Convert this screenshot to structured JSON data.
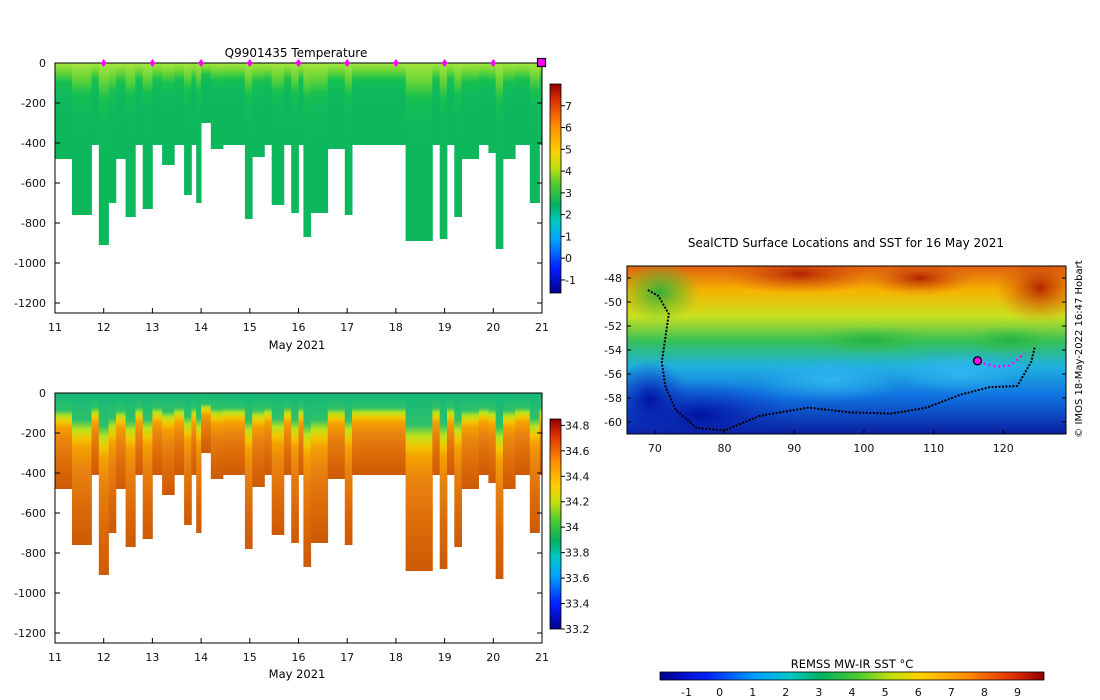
{
  "chart_data": [
    {
      "type": "heatmap",
      "title": "Q9901435  Temperature",
      "xlabel": "May 2021",
      "ylabel": "",
      "x_ticks": [
        11,
        12,
        13,
        14,
        15,
        16,
        17,
        18,
        19,
        20,
        21
      ],
      "x_range": [
        11,
        21
      ],
      "y_ticks": [
        0,
        -200,
        -400,
        -600,
        -800,
        -1000,
        -1200
      ],
      "y_range": [
        -1250,
        0
      ],
      "colorbar": {
        "min": -1.6,
        "max": 8,
        "ticks": [
          -1,
          0,
          1,
          2,
          3,
          4,
          5,
          6,
          7
        ],
        "palette": "jet-like"
      },
      "profile_markers_days": [
        12,
        13,
        14,
        15,
        16,
        17,
        18,
        19,
        20
      ],
      "current_position_day": 21,
      "marker_color": "#ff00ff",
      "profiles": [
        {
          "day": 11.05,
          "depth": 480
        },
        {
          "day": 11.35,
          "depth": 760
        },
        {
          "day": 11.75,
          "depth": 410
        },
        {
          "day": 11.9,
          "depth": 910
        },
        {
          "day": 12.1,
          "depth": 700
        },
        {
          "day": 12.25,
          "depth": 480
        },
        {
          "day": 12.45,
          "depth": 770
        },
        {
          "day": 12.65,
          "depth": 410
        },
        {
          "day": 12.8,
          "depth": 730
        },
        {
          "day": 13.0,
          "depth": 410
        },
        {
          "day": 13.2,
          "depth": 510
        },
        {
          "day": 13.45,
          "depth": 410
        },
        {
          "day": 13.65,
          "depth": 660
        },
        {
          "day": 13.8,
          "depth": 410
        },
        {
          "day": 13.9,
          "depth": 700
        },
        {
          "day": 14.0,
          "depth": 300
        },
        {
          "day": 14.2,
          "depth": 430
        },
        {
          "day": 14.45,
          "depth": 410
        },
        {
          "day": 14.7,
          "depth": 410
        },
        {
          "day": 14.9,
          "depth": 780
        },
        {
          "day": 15.05,
          "depth": 470
        },
        {
          "day": 15.3,
          "depth": 410
        },
        {
          "day": 15.45,
          "depth": 710
        },
        {
          "day": 15.7,
          "depth": 410
        },
        {
          "day": 15.85,
          "depth": 750
        },
        {
          "day": 16.0,
          "depth": 410
        },
        {
          "day": 16.1,
          "depth": 870
        },
        {
          "day": 16.25,
          "depth": 750
        },
        {
          "day": 16.6,
          "depth": 430
        },
        {
          "day": 16.95,
          "depth": 760
        },
        {
          "day": 17.1,
          "depth": 410
        },
        {
          "day": 17.3,
          "depth": 410
        },
        {
          "day": 17.6,
          "depth": 410
        },
        {
          "day": 17.9,
          "depth": 410
        },
        {
          "day": 18.2,
          "depth": 890
        },
        {
          "day": 18.75,
          "depth": 410
        },
        {
          "day": 18.9,
          "depth": 880
        },
        {
          "day": 19.05,
          "depth": 410
        },
        {
          "day": 19.2,
          "depth": 770
        },
        {
          "day": 19.35,
          "depth": 480
        },
        {
          "day": 19.7,
          "depth": 410
        },
        {
          "day": 19.9,
          "depth": 450
        },
        {
          "day": 20.05,
          "depth": 930
        },
        {
          "day": 20.2,
          "depth": 480
        },
        {
          "day": 20.45,
          "depth": 410
        },
        {
          "day": 20.75,
          "depth": 700
        },
        {
          "day": 20.95,
          "depth": 410
        }
      ]
    },
    {
      "type": "heatmap",
      "title": "",
      "xlabel": "May 2021",
      "ylabel": "",
      "x_ticks": [
        11,
        12,
        13,
        14,
        15,
        16,
        17,
        18,
        19,
        20,
        21
      ],
      "x_range": [
        11,
        21
      ],
      "y_ticks": [
        0,
        -200,
        -400,
        -600,
        -800,
        -1000,
        -1200
      ],
      "y_range": [
        -1250,
        0
      ],
      "colorbar": {
        "min": 33.2,
        "max": 34.85,
        "ticks": [
          "33.2",
          "33.4",
          "33.6",
          "33.8",
          "34",
          "34.2",
          "34.4",
          "34.6",
          "34.8"
        ],
        "palette": "jet-like"
      }
    },
    {
      "type": "heatmap",
      "title": "SealCTD Surface Locations and SST for 16 May 2021",
      "xlabel": "",
      "ylabel": "",
      "x_ticks": [
        70,
        80,
        90,
        100,
        110,
        120
      ],
      "x_range": [
        66,
        129
      ],
      "y_ticks": [
        -48,
        -50,
        -52,
        -54,
        -56,
        -58,
        -60
      ],
      "y_range": [
        -61,
        -47
      ],
      "colorbar": {
        "label": "REMSS MW-IR SST °C",
        "min": -1.8,
        "max": 9.8,
        "ticks": [
          -1,
          0,
          1,
          2,
          3,
          4,
          5,
          6,
          7,
          8,
          9
        ]
      },
      "track": [
        [
          69,
          -49
        ],
        [
          70.5,
          -49.5
        ],
        [
          72,
          -51
        ],
        [
          71.5,
          -53
        ],
        [
          71,
          -55
        ],
        [
          71.5,
          -57
        ],
        [
          73,
          -59
        ],
        [
          76,
          -60.5
        ],
        [
          80,
          -60.7
        ],
        [
          85,
          -59.5
        ],
        [
          92,
          -58.8
        ],
        [
          98,
          -59.2
        ],
        [
          104,
          -59.3
        ],
        [
          109,
          -58.8
        ],
        [
          114,
          -57.7
        ],
        [
          118,
          -57.1
        ],
        [
          122,
          -57
        ],
        [
          124,
          -55
        ],
        [
          124.5,
          -53.8
        ]
      ],
      "recent_track": [
        [
          116.5,
          -55
        ],
        [
          119,
          -55.4
        ],
        [
          121,
          -55.3
        ],
        [
          123,
          -54.3
        ]
      ],
      "current_position": [
        116.3,
        -54.9
      ],
      "copyright": "© IMOS 18-May-2022 16:47 Hobart"
    }
  ]
}
